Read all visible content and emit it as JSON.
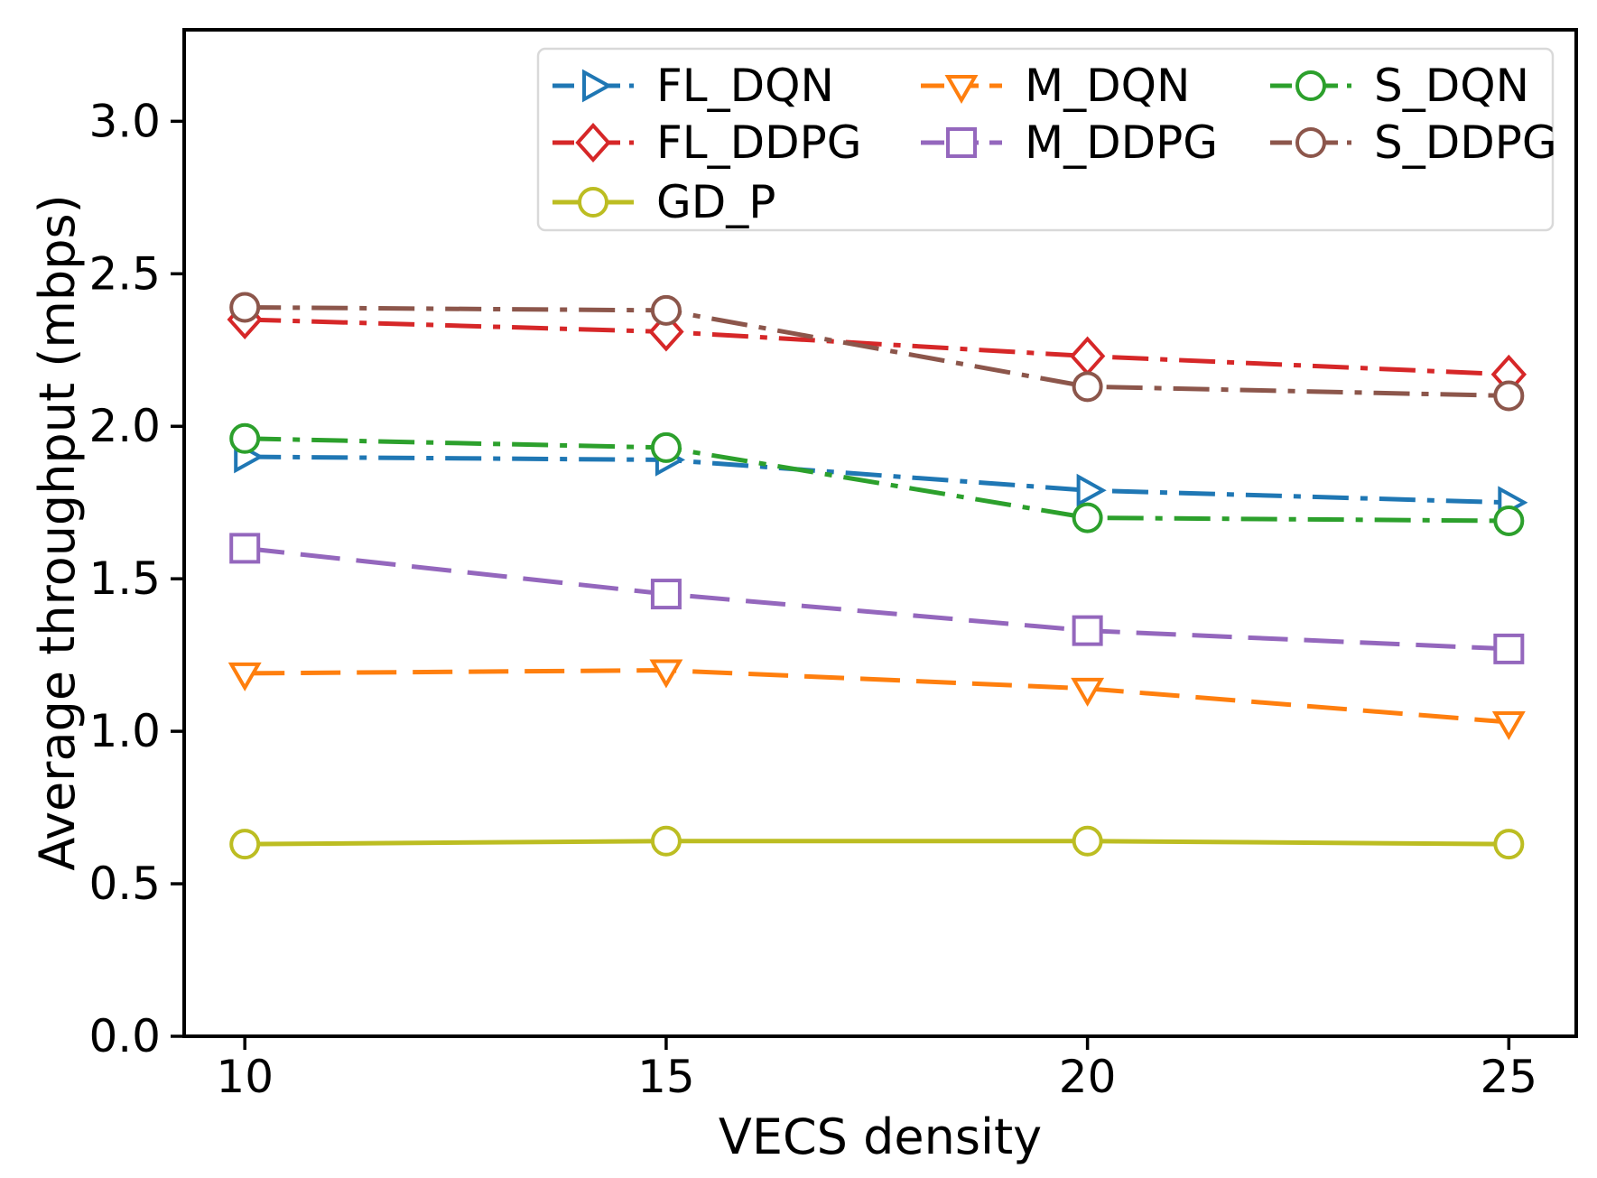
{
  "chart_data": {
    "type": "line",
    "title": "",
    "xlabel": "VECS density",
    "ylabel": "Average throughput (mbps)",
    "x": [
      10,
      15,
      20,
      25
    ],
    "xticks": [
      10,
      15,
      20,
      25
    ],
    "yticks": [
      0.0,
      0.5,
      1.0,
      1.5,
      2.0,
      2.5,
      3.0
    ],
    "xlim": [
      9.28,
      25.8
    ],
    "ylim": [
      0,
      3.3
    ],
    "grid": false,
    "legend_position": "upper center inside plot, 3 columns, rounded light-gray border",
    "series": [
      {
        "name": "FL_DQN",
        "color": "#1f77b4",
        "linestyle": "dashdot",
        "marker": "triangle-right",
        "values": [
          1.9,
          1.89,
          1.79,
          1.75
        ]
      },
      {
        "name": "FL_DDPG",
        "color": "#d62728",
        "linestyle": "dashdot",
        "marker": "diamond",
        "values": [
          2.35,
          2.31,
          2.23,
          2.17
        ]
      },
      {
        "name": "GD_P",
        "color": "#bcbd22",
        "linestyle": "solid",
        "marker": "circle",
        "values": [
          0.63,
          0.64,
          0.64,
          0.63
        ]
      },
      {
        "name": "M_DQN",
        "color": "#ff7f0e",
        "linestyle": "dashed",
        "marker": "triangle-down",
        "values": [
          1.19,
          1.2,
          1.14,
          1.03
        ]
      },
      {
        "name": "M_DDPG",
        "color": "#9467bd",
        "linestyle": "dashed",
        "marker": "square",
        "values": [
          1.6,
          1.45,
          1.33,
          1.27
        ]
      },
      {
        "name": "S_DQN",
        "color": "#2ca02c",
        "linestyle": "dashdot",
        "marker": "circle",
        "values": [
          1.96,
          1.93,
          1.7,
          1.69
        ]
      },
      {
        "name": "S_DDPG",
        "color": "#8c564b",
        "linestyle": "dashdot",
        "marker": "circle",
        "values": [
          2.39,
          2.38,
          2.13,
          2.1
        ]
      }
    ],
    "legend_columns": [
      [
        "FL_DQN",
        "FL_DDPG",
        "GD_P"
      ],
      [
        "M_DQN",
        "M_DDPG"
      ],
      [
        "S_DQN",
        "S_DDPG"
      ]
    ],
    "axis_color": "#000000",
    "legend_border_color": "#d9d9d9"
  }
}
